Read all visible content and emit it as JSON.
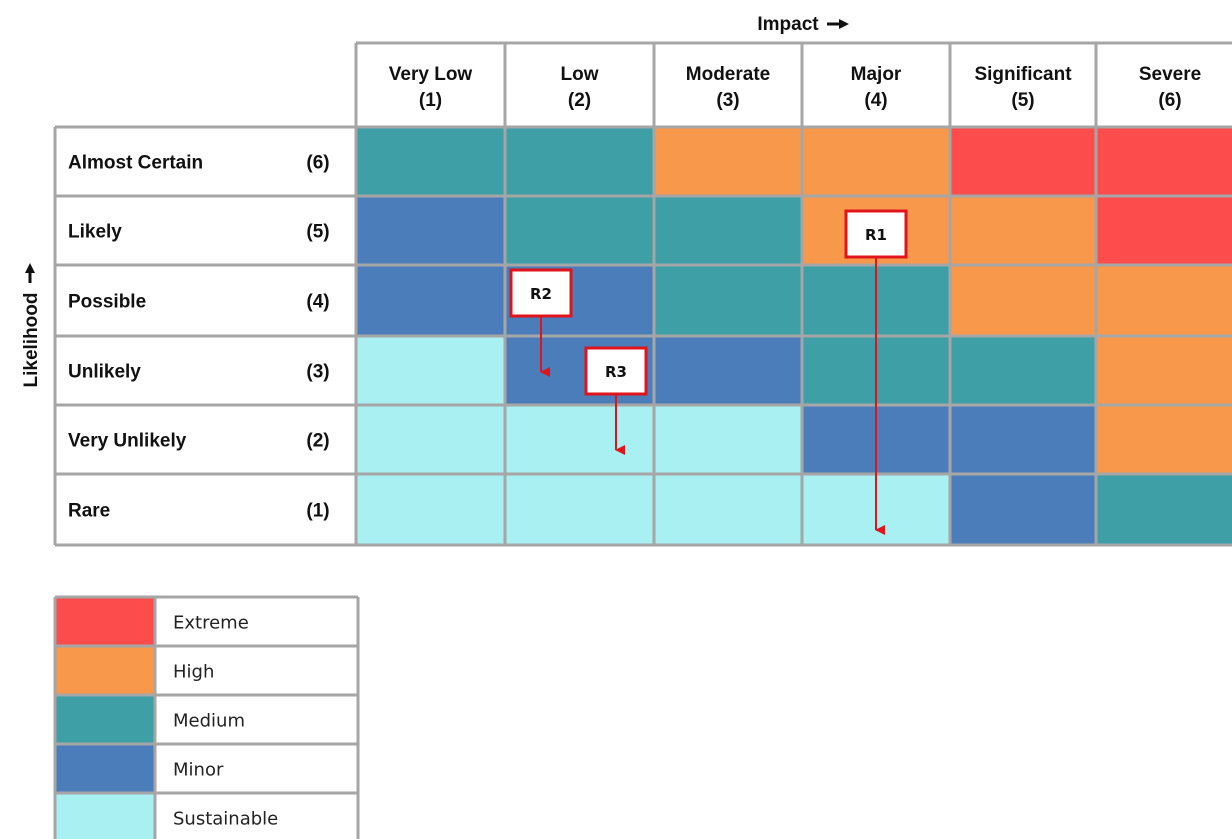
{
  "axes": {
    "x_label": "Impact",
    "y_label": "Likelihood"
  },
  "columns": [
    {
      "name": "Very Low",
      "score": "(1)"
    },
    {
      "name": "Low",
      "score": "(2)"
    },
    {
      "name": "Moderate",
      "score": "(3)"
    },
    {
      "name": "Major",
      "score": "(4)"
    },
    {
      "name": "Significant",
      "score": "(5)"
    },
    {
      "name": "Severe",
      "score": "(6)"
    }
  ],
  "rows": [
    {
      "name": "Almost Certain",
      "score": "(6)"
    },
    {
      "name": "Likely",
      "score": "(5)"
    },
    {
      "name": "Possible",
      "score": "(4)"
    },
    {
      "name": "Unlikely",
      "score": "(3)"
    },
    {
      "name": "Very Unlikely",
      "score": "(2)"
    },
    {
      "name": "Rare",
      "score": "(1)"
    }
  ],
  "levels": {
    "extreme": {
      "label": "Extreme",
      "color": "#fc4c4c"
    },
    "high": {
      "label": "High",
      "color": "#f7984a"
    },
    "medium": {
      "label": "Medium",
      "color": "#3e9fa6"
    },
    "minor": {
      "label": "Minor",
      "color": "#4c7dbb"
    },
    "sustainable": {
      "label": "Sustainable",
      "color": "#a8f0f2"
    }
  },
  "grid": [
    [
      "medium",
      "medium",
      "high",
      "high",
      "extreme",
      "extreme"
    ],
    [
      "minor",
      "medium",
      "medium",
      "high",
      "high",
      "extreme"
    ],
    [
      "minor",
      "minor",
      "medium",
      "medium",
      "high",
      "high"
    ],
    [
      "sustainable",
      "minor",
      "minor",
      "medium",
      "medium",
      "high"
    ],
    [
      "sustainable",
      "sustainable",
      "sustainable",
      "minor",
      "minor",
      "high"
    ],
    [
      "sustainable",
      "sustainable",
      "sustainable",
      "sustainable",
      "minor",
      "medium"
    ]
  ],
  "legend": [
    "extreme",
    "high",
    "medium",
    "minor",
    "sustainable"
  ],
  "risks": [
    {
      "label": "R1",
      "from": {
        "likelihood": 5,
        "impact": 4
      },
      "to": {
        "likelihood": 1,
        "impact": 4
      }
    },
    {
      "label": "R2",
      "from": {
        "likelihood": 4,
        "impact": 2
      },
      "to": {
        "likelihood": 3,
        "impact": 2
      }
    },
    {
      "label": "R3",
      "from": {
        "likelihood": 3,
        "impact": 2
      },
      "to": {
        "likelihood": 2,
        "impact": 2
      }
    }
  ],
  "colors": {
    "grid_line": "#a6a6a6",
    "marker_border": "#e0141b",
    "arrow": "#e0141b"
  }
}
